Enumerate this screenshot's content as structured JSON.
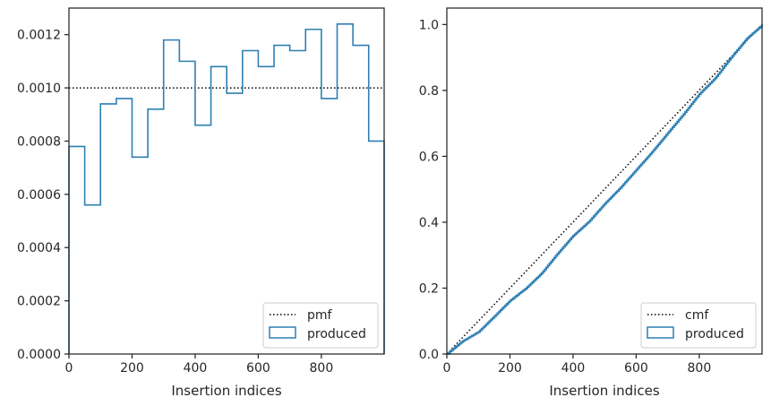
{
  "colors": {
    "series": "#2e7fb3",
    "reference": "#000000",
    "axes": "#262626"
  },
  "chart_data": [
    {
      "type": "step-histogram",
      "xlabel": "Insertion indices",
      "ylabel": "",
      "xlim": [
        0,
        999
      ],
      "ylim": [
        0,
        0.0013
      ],
      "xticks": [
        0,
        200,
        400,
        600,
        800
      ],
      "xtick_labels": [
        "0",
        "200",
        "400",
        "600",
        "800"
      ],
      "yticks": [
        0,
        0.0002,
        0.0004,
        0.0006,
        0.0008,
        0.001,
        0.0012
      ],
      "ytick_labels": [
        "0.0000",
        "0.0002",
        "0.0004",
        "0.0006",
        "0.0008",
        "0.0010",
        "0.0012"
      ],
      "bin_edges": [
        0,
        50,
        100,
        150,
        200,
        250,
        300,
        350,
        400,
        450,
        500,
        550,
        600,
        650,
        700,
        750,
        800,
        850,
        900,
        950,
        999
      ],
      "series": [
        {
          "name": "pmf",
          "style": "dotted",
          "x": [
            0,
            999
          ],
          "y": [
            0.001,
            0.001
          ]
        },
        {
          "name": "produced",
          "style": "step",
          "values": [
            0.00078,
            0.00056,
            0.00094,
            0.00096,
            0.00074,
            0.00092,
            0.00118,
            0.0011,
            0.00086,
            0.00108,
            0.00098,
            0.00114,
            0.00108,
            0.00116,
            0.00114,
            0.00122,
            0.00096,
            0.00124,
            0.00116,
            0.0008
          ]
        }
      ],
      "legend": {
        "position": "lower-right",
        "entries": [
          "pmf",
          "produced"
        ]
      }
    },
    {
      "type": "step-cdf",
      "xlabel": "Insertion indices",
      "ylabel": "",
      "xlim": [
        0,
        999
      ],
      "ylim": [
        0,
        1.05
      ],
      "xticks": [
        0,
        200,
        400,
        600,
        800
      ],
      "xtick_labels": [
        "0",
        "200",
        "400",
        "600",
        "800"
      ],
      "yticks": [
        0,
        0.2,
        0.4,
        0.6,
        0.8,
        1.0
      ],
      "ytick_labels": [
        "0.0",
        "0.2",
        "0.4",
        "0.6",
        "0.8",
        "1.0"
      ],
      "series": [
        {
          "name": "cmf",
          "style": "dotted",
          "x": [
            0,
            999
          ],
          "y": [
            0,
            1
          ]
        },
        {
          "name": "produced",
          "style": "step",
          "x": [
            0,
            50,
            100,
            150,
            200,
            250,
            300,
            350,
            400,
            450,
            500,
            550,
            600,
            650,
            700,
            750,
            800,
            850,
            900,
            950,
            999
          ],
          "y": [
            0,
            0.039,
            0.067,
            0.114,
            0.162,
            0.199,
            0.245,
            0.304,
            0.359,
            0.402,
            0.456,
            0.505,
            0.559,
            0.613,
            0.671,
            0.728,
            0.789,
            0.837,
            0.899,
            0.957,
            0.998
          ]
        }
      ],
      "legend": {
        "position": "lower-right",
        "entries": [
          "cmf",
          "produced"
        ]
      }
    }
  ]
}
